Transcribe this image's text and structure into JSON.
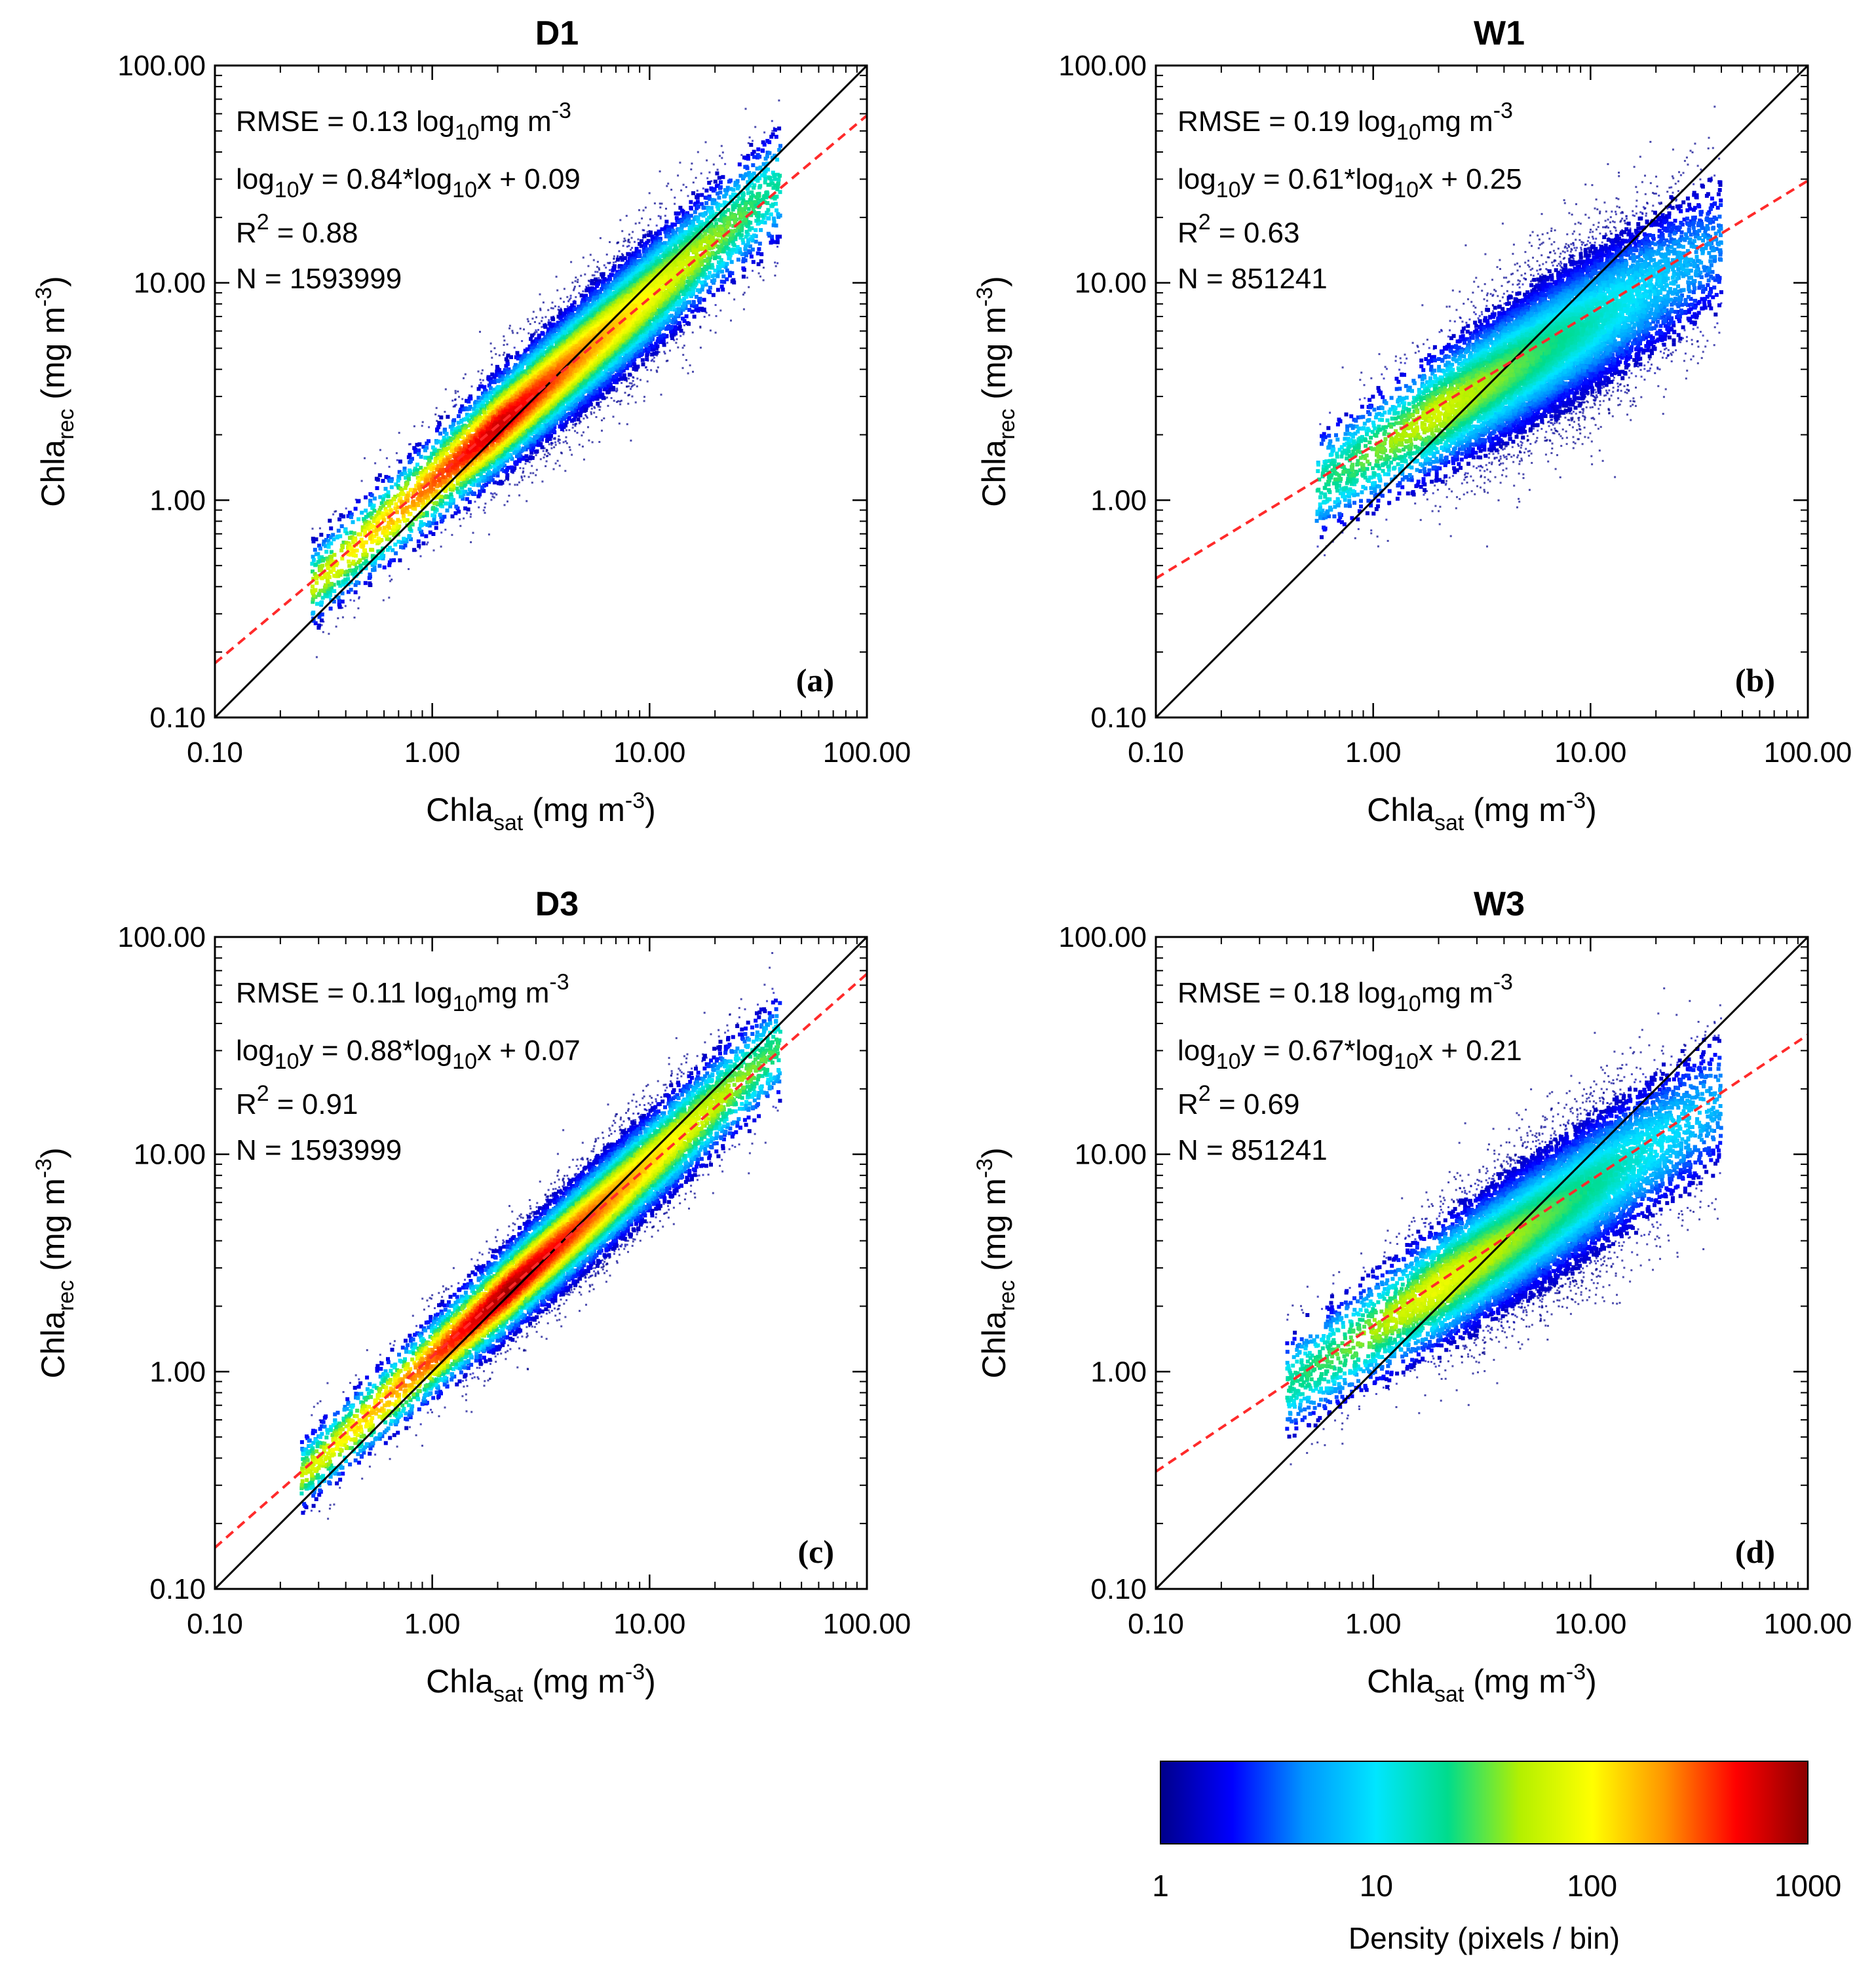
{
  "chart_data": [
    {
      "type": "scatter",
      "subtype": "density-hexbin",
      "title": "D1",
      "panel_label": "(a)",
      "xlabel": {
        "main": "Chla",
        "sub": "sat",
        "units": " (mg m",
        "sup": "-3",
        "close": ")"
      },
      "ylabel": {
        "main": "Chla",
        "sub": "rec",
        "units": " (mg m",
        "sup": "-3",
        "close": ")"
      },
      "xscale": "log",
      "yscale": "log",
      "xlim": [
        0.1,
        100
      ],
      "ylim": [
        0.1,
        100
      ],
      "xticks": [
        "0.10",
        "1.00",
        "10.00",
        "100.00"
      ],
      "yticks": [
        "0.10",
        "1.00",
        "10.00",
        "100.00"
      ],
      "stats": {
        "rmse": {
          "pre": "RMSE = 0.13 log",
          "sub": "10",
          "post": "mg m",
          "sup": "-3"
        },
        "fit": {
          "p1": "log",
          "s1": "10",
          "p2": "y = 0.84*log",
          "s2": "10",
          "p3": "x + 0.09"
        },
        "r2": {
          "pre": "R",
          "sup": "2",
          "post": " = 0.88"
        },
        "n": "N = 1593999"
      },
      "fit_line": {
        "slope": 0.84,
        "intercept": 0.09
      },
      "one_to_one": true,
      "cloud": {
        "slope": 0.86,
        "intercept": 0.08,
        "spread": 0.15,
        "xmin": 0.28,
        "xmax": 40,
        "peak_density": 700,
        "peak_x": 2.0
      }
    },
    {
      "type": "scatter",
      "subtype": "density-hexbin",
      "title": "W1",
      "panel_label": "(b)",
      "xlabel": {
        "main": "Chla",
        "sub": "sat",
        "units": " (mg m",
        "sup": "-3",
        "close": ")"
      },
      "ylabel": {
        "main": "Chla",
        "sub": "rec",
        "units": " (mg m",
        "sup": "-3",
        "close": ")"
      },
      "xscale": "log",
      "yscale": "log",
      "xlim": [
        0.1,
        100
      ],
      "ylim": [
        0.1,
        100
      ],
      "xticks": [
        "0.10",
        "1.00",
        "10.00",
        "100.00"
      ],
      "yticks": [
        "0.10",
        "1.00",
        "10.00",
        "100.00"
      ],
      "stats": {
        "rmse": {
          "pre": "RMSE = 0.19 log",
          "sub": "10",
          "post": "mg m",
          "sup": "-3"
        },
        "fit": {
          "p1": "log",
          "s1": "10",
          "p2": "y = 0.61*log",
          "s2": "10",
          "p3": "x + 0.25"
        },
        "r2": {
          "pre": "R",
          "sup": "2",
          "post": " = 0.63"
        },
        "n": "N = 851241"
      },
      "fit_line": {
        "slope": 0.61,
        "intercept": 0.25
      },
      "one_to_one": true,
      "cloud": {
        "slope": 0.6,
        "intercept": 0.22,
        "spread": 0.2,
        "xmin": 0.55,
        "xmax": 40,
        "peak_density": 70,
        "peak_x": 2.0
      }
    },
    {
      "type": "scatter",
      "subtype": "density-hexbin",
      "title": "D3",
      "panel_label": "(c)",
      "xlabel": {
        "main": "Chla",
        "sub": "sat",
        "units": " (mg m",
        "sup": "-3",
        "close": ")"
      },
      "ylabel": {
        "main": "Chla",
        "sub": "rec",
        "units": " (mg m",
        "sup": "-3",
        "close": ")"
      },
      "xscale": "log",
      "yscale": "log",
      "xlim": [
        0.1,
        100
      ],
      "ylim": [
        0.1,
        100
      ],
      "xticks": [
        "0.10",
        "1.00",
        "10.00",
        "100.00"
      ],
      "yticks": [
        "0.10",
        "1.00",
        "10.00",
        "100.00"
      ],
      "stats": {
        "rmse": {
          "pre": "RMSE = 0.11 log",
          "sub": "10",
          "post": "mg m",
          "sup": "-3"
        },
        "fit": {
          "p1": "log",
          "s1": "10",
          "p2": "y = 0.88*log",
          "s2": "10",
          "p3": "x + 0.07"
        },
        "r2": {
          "pre": "R",
          "sup": "2",
          "post": " = 0.91"
        },
        "n": "N = 1593999"
      },
      "fit_line": {
        "slope": 0.88,
        "intercept": 0.07
      },
      "one_to_one": true,
      "cloud": {
        "slope": 0.9,
        "intercept": 0.06,
        "spread": 0.13,
        "xmin": 0.25,
        "xmax": 40,
        "peak_density": 900,
        "peak_x": 2.2
      }
    },
    {
      "type": "scatter",
      "subtype": "density-hexbin",
      "title": "W3",
      "panel_label": "(d)",
      "xlabel": {
        "main": "Chla",
        "sub": "sat",
        "units": " (mg m",
        "sup": "-3",
        "close": ")"
      },
      "ylabel": {
        "main": "Chla",
        "sub": "rec",
        "units": " (mg m",
        "sup": "-3",
        "close": ")"
      },
      "xscale": "log",
      "yscale": "log",
      "xlim": [
        0.1,
        100
      ],
      "ylim": [
        0.1,
        100
      ],
      "xticks": [
        "0.10",
        "1.00",
        "10.00",
        "100.00"
      ],
      "yticks": [
        "0.10",
        "1.00",
        "10.00",
        "100.00"
      ],
      "stats": {
        "rmse": {
          "pre": "RMSE = 0.18 log",
          "sub": "10",
          "post": "mg m",
          "sup": "-3"
        },
        "fit": {
          "p1": "log",
          "s1": "10",
          "p2": "y = 0.67*log",
          "s2": "10",
          "p3": "x + 0.21"
        },
        "r2": {
          "pre": "R",
          "sup": "2",
          "post": " = 0.69"
        },
        "n": "N = 851241"
      },
      "fit_line": {
        "slope": 0.67,
        "intercept": 0.21
      },
      "one_to_one": true,
      "cloud": {
        "slope": 0.66,
        "intercept": 0.19,
        "spread": 0.19,
        "xmin": 0.4,
        "xmax": 40,
        "peak_density": 90,
        "peak_x": 2.0
      }
    }
  ],
  "colorbar": {
    "scale": "log",
    "range": [
      1,
      1000
    ],
    "ticks": [
      "1",
      "10",
      "100",
      "1000"
    ],
    "label": "Density (pixels / bin)",
    "colormap": [
      "#00008b",
      "#0000ff",
      "#0096ff",
      "#00e6ff",
      "#00dc8c",
      "#b4f000",
      "#ffff00",
      "#ff9600",
      "#ff0000",
      "#8b0000"
    ]
  },
  "colors": {
    "fit_line": "#ff2a2a",
    "one_to_one": "#000000",
    "axes": "#000000"
  }
}
